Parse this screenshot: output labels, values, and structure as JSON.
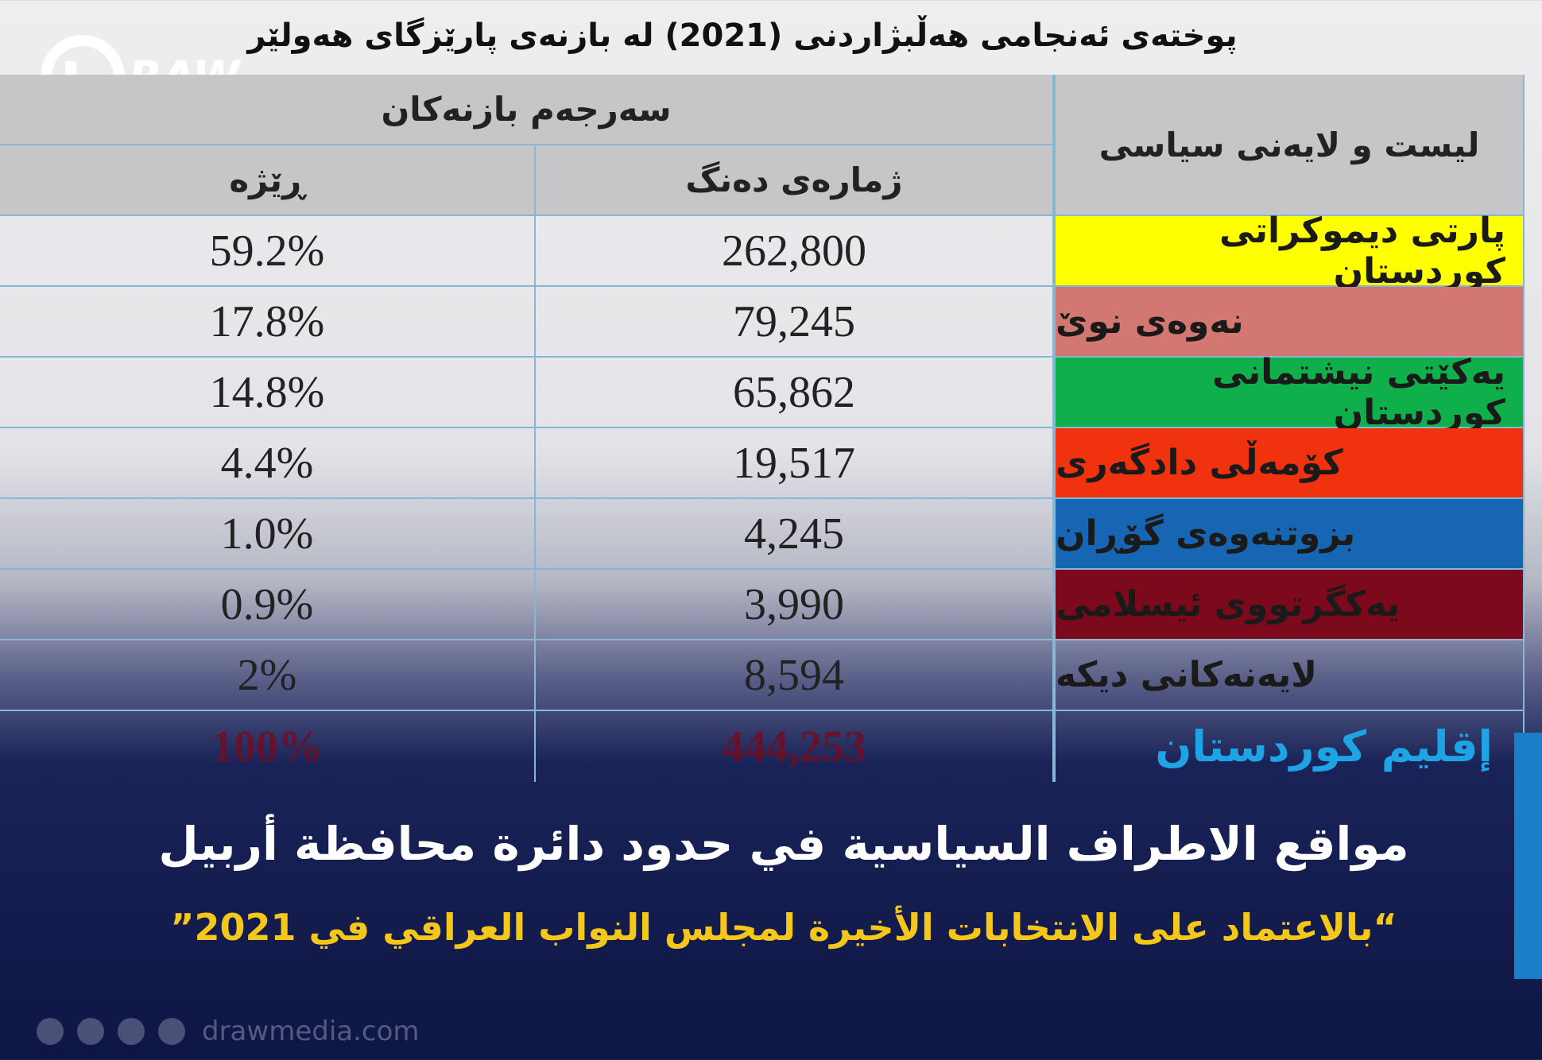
{
  "logo": {
    "text": "RAW"
  },
  "title": "پوختەی ئەنجامی هەڵبژاردنی (2021) لە بازنەی پارێزگای هەولێر",
  "table": {
    "header": {
      "group": "سەرجەم بازنەکان",
      "party": "لیست و لایەنی سیاسی",
      "votes": "ژمارەی دەنگ",
      "percent": "ڕێژە"
    },
    "rows": [
      {
        "party": "پارتی دیموکراتی کوردستان",
        "votes": "262,800",
        "percent": "59.2%",
        "color": "#ffff00"
      },
      {
        "party": "نەوەی نوێ",
        "votes": "79,245",
        "percent": "17.8%",
        "color": "#d27772"
      },
      {
        "party": "یەکێتی نیشتمانی کوردستان",
        "votes": "65,862",
        "percent": "14.8%",
        "color": "#0fb04c"
      },
      {
        "party": "کۆمەڵی دادگەری",
        "votes": "19,517",
        "percent": "4.4%",
        "color": "#f0320e"
      },
      {
        "party": "بزوتنەوەی گۆڕان",
        "votes": "4,245",
        "percent": "1.0%",
        "color": "#1766b4"
      },
      {
        "party": "یەکگرتووی ئیسلامی",
        "votes": "3,990",
        "percent": "0.9%",
        "color": "#7c0a1c"
      },
      {
        "party": "لایەنەکانی دیکە",
        "votes": "8,594",
        "percent": "2%"
      }
    ],
    "total": {
      "votes": "444,253",
      "percent": "100%"
    }
  },
  "overlay": {
    "region": "إقليم كوردستان",
    "headline": "مواقع الاطراف السياسية في حدود دائرة محافظة أربيل",
    "subtitle": "“بالاعتماد على الانتخابات الأخيرة لمجلس النواب العراقي في 2021”"
  },
  "footer": {
    "website": "drawmedia.com"
  }
}
